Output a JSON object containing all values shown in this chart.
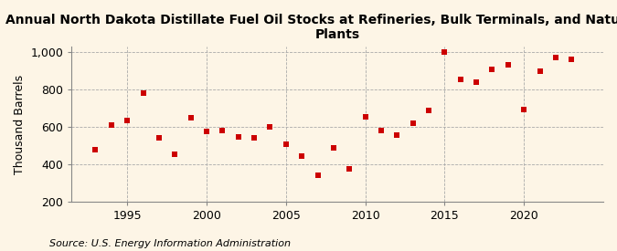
{
  "title": "Annual North Dakota Distillate Fuel Oil Stocks at Refineries, Bulk Terminals, and Natural Gas\nPlants",
  "ylabel": "Thousand Barrels",
  "source": "Source: U.S. Energy Information Administration",
  "years": [
    1993,
    1994,
    1995,
    1996,
    1997,
    1998,
    1999,
    2000,
    2001,
    2002,
    2003,
    2004,
    2005,
    2006,
    2007,
    2008,
    2009,
    2010,
    2011,
    2012,
    2013,
    2014,
    2015,
    2016,
    2017,
    2018,
    2019,
    2020,
    2021,
    2022,
    2023
  ],
  "values": [
    478,
    610,
    635,
    780,
    540,
    455,
    650,
    578,
    580,
    545,
    540,
    600,
    510,
    445,
    345,
    490,
    375,
    655,
    580,
    555,
    620,
    690,
    1000,
    855,
    840,
    905,
    930,
    695,
    895,
    970,
    960
  ],
  "marker_color": "#cc0000",
  "marker_size": 25,
  "background_color": "#fdf5e6",
  "plot_bg_color": "#fdf5e6",
  "grid_color": "#aaaaaa",
  "ylim": [
    200,
    1000
  ],
  "yticks": [
    200,
    400,
    600,
    800,
    1000
  ],
  "ytick_labels": [
    "200",
    "400",
    "600",
    "800",
    "1,000"
  ],
  "xticks": [
    1995,
    2000,
    2005,
    2010,
    2015,
    2020
  ],
  "title_fontsize": 10,
  "axis_fontsize": 9,
  "source_fontsize": 8
}
